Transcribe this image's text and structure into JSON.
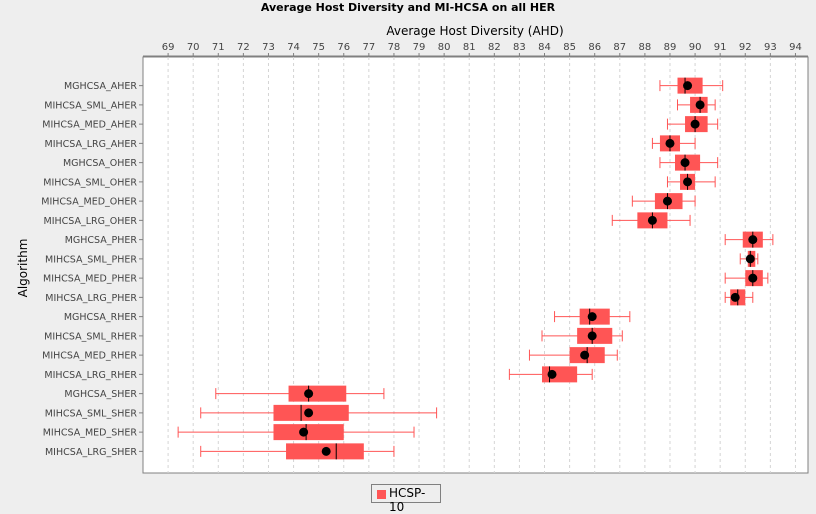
{
  "chart_data": {
    "type": "boxplot",
    "orientation": "horizontal",
    "title": "Average Host Diversity and MI-HCSA on all HER",
    "xlabel": "Average Host Diversity (AHD)",
    "ylabel": "Algorithm",
    "xlim": [
      68,
      94.5
    ],
    "xticks": [
      69,
      70,
      71,
      72,
      73,
      74,
      75,
      76,
      77,
      78,
      79,
      80,
      81,
      82,
      83,
      84,
      85,
      86,
      87,
      88,
      89,
      90,
      91,
      92,
      93,
      94
    ],
    "x_axis_position": "top",
    "grid": "vertical dashed",
    "legend": "bottom-center",
    "series": [
      {
        "name": "HCSP-10",
        "color": "#ff5555"
      }
    ],
    "mean_color": "#000000",
    "categories": [
      "MGHCSA_AHER",
      "MIHCSA_SML_AHER",
      "MIHCSA_MED_AHER",
      "MIHCSA_LRG_AHER",
      "MGHCSA_OHER",
      "MIHCSA_SML_OHER",
      "MIHCSA_MED_OHER",
      "MIHCSA_LRG_OHER",
      "MGHCSA_PHER",
      "MIHCSA_SML_PHER",
      "MIHCSA_MED_PHER",
      "MIHCSA_LRG_PHER",
      "MGHCSA_RHER",
      "MIHCSA_SML_RHER",
      "MIHCSA_MED_RHER",
      "MIHCSA_LRG_RHER",
      "MGHCSA_SHER",
      "MIHCSA_SML_SHER",
      "MIHCSA_MED_SHER",
      "MIHCSA_LRG_SHER"
    ],
    "boxes": [
      {
        "min": 88.6,
        "q1": 89.3,
        "median": 89.6,
        "q3": 90.3,
        "max": 91.1,
        "mean": 89.7
      },
      {
        "min": 89.3,
        "q1": 89.8,
        "median": 90.2,
        "q3": 90.5,
        "max": 90.8,
        "mean": 90.2
      },
      {
        "min": 88.9,
        "q1": 89.6,
        "median": 90.0,
        "q3": 90.5,
        "max": 90.9,
        "mean": 90.0
      },
      {
        "min": 88.3,
        "q1": 88.6,
        "median": 89.0,
        "q3": 89.4,
        "max": 90.0,
        "mean": 89.0
      },
      {
        "min": 88.6,
        "q1": 89.2,
        "median": 89.6,
        "q3": 90.2,
        "max": 90.9,
        "mean": 89.6
      },
      {
        "min": 88.9,
        "q1": 89.4,
        "median": 89.7,
        "q3": 90.0,
        "max": 90.8,
        "mean": 89.7
      },
      {
        "min": 87.5,
        "q1": 88.4,
        "median": 88.9,
        "q3": 89.5,
        "max": 90.0,
        "mean": 88.9
      },
      {
        "min": 86.7,
        "q1": 87.7,
        "median": 88.3,
        "q3": 88.9,
        "max": 89.8,
        "mean": 88.3
      },
      {
        "min": 91.2,
        "q1": 91.9,
        "median": 92.3,
        "q3": 92.7,
        "max": 93.1,
        "mean": 92.3
      },
      {
        "min": 91.8,
        "q1": 92.1,
        "median": 92.2,
        "q3": 92.4,
        "max": 92.5,
        "mean": 92.2
      },
      {
        "min": 91.2,
        "q1": 92.0,
        "median": 92.3,
        "q3": 92.7,
        "max": 92.9,
        "mean": 92.3
      },
      {
        "min": 91.2,
        "q1": 91.4,
        "median": 91.7,
        "q3": 92.0,
        "max": 92.3,
        "mean": 91.6
      },
      {
        "min": 84.4,
        "q1": 85.4,
        "median": 85.8,
        "q3": 86.6,
        "max": 87.4,
        "mean": 85.9
      },
      {
        "min": 83.9,
        "q1": 85.3,
        "median": 85.9,
        "q3": 86.7,
        "max": 87.1,
        "mean": 85.9
      },
      {
        "min": 83.4,
        "q1": 85.0,
        "median": 85.7,
        "q3": 86.4,
        "max": 86.9,
        "mean": 85.6
      },
      {
        "min": 82.6,
        "q1": 83.9,
        "median": 84.2,
        "q3": 85.3,
        "max": 85.9,
        "mean": 84.3
      },
      {
        "min": 70.9,
        "q1": 73.8,
        "median": 74.6,
        "q3": 76.1,
        "max": 77.6,
        "mean": 74.6
      },
      {
        "min": 70.3,
        "q1": 73.2,
        "median": 74.3,
        "q3": 76.2,
        "max": 79.7,
        "mean": 74.6
      },
      {
        "min": 69.4,
        "q1": 73.2,
        "median": 74.5,
        "q3": 76.0,
        "max": 78.8,
        "mean": 74.4
      },
      {
        "min": 70.3,
        "q1": 73.7,
        "median": 75.7,
        "q3": 76.8,
        "max": 78.0,
        "mean": 75.3
      }
    ]
  }
}
